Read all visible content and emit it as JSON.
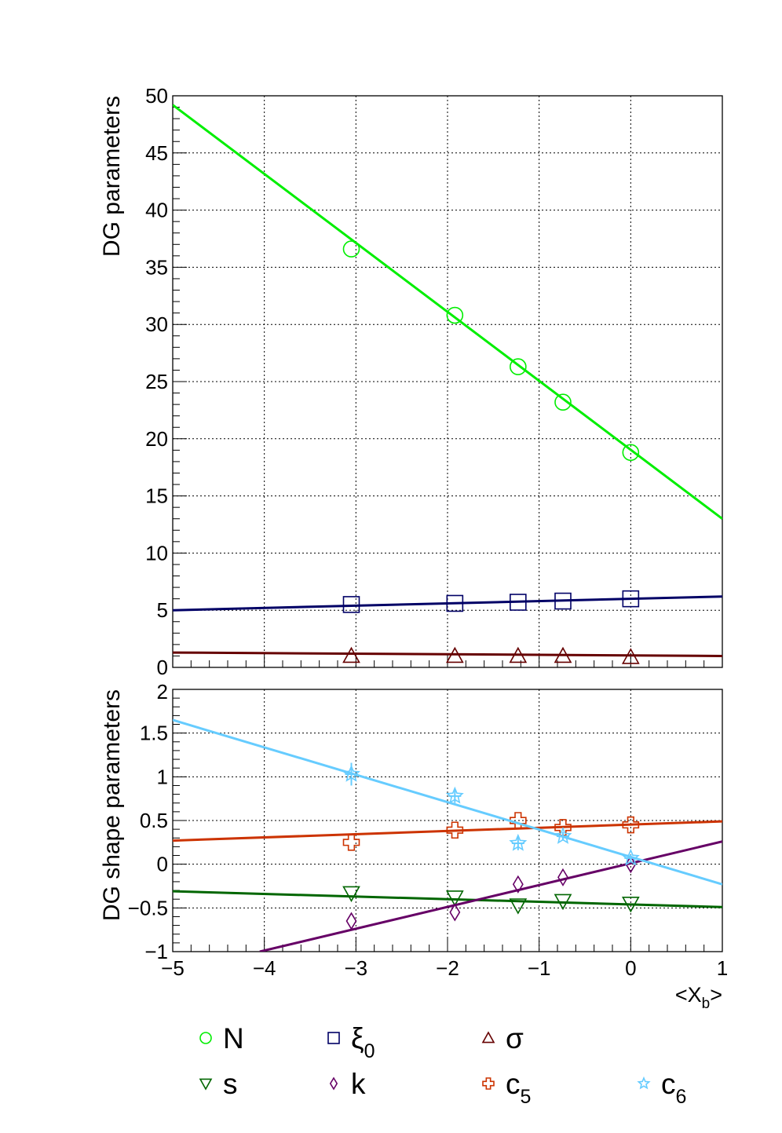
{
  "chart_data": [
    {
      "type": "scatter",
      "panel": "top",
      "ylabel": "DG parameters",
      "xlim": [
        -5,
        1
      ],
      "ylim": [
        0,
        50
      ],
      "grid": true,
      "x_ticks": [
        -5,
        -4,
        -3,
        -2,
        -1,
        0,
        1
      ],
      "y_ticks": [
        0,
        5,
        10,
        15,
        20,
        25,
        30,
        35,
        40,
        45,
        50
      ],
      "y_tick_labels": [
        "0",
        "5",
        "10",
        "15",
        "20",
        "25",
        "30",
        "35",
        "40",
        "45",
        "50"
      ],
      "series": [
        {
          "key": "N",
          "marker": "circle",
          "color": "#00ee00",
          "x": [
            -3.05,
            -1.92,
            -1.23,
            -0.74,
            0.0
          ],
          "y": [
            36.6,
            30.8,
            26.3,
            23.2,
            18.8
          ],
          "fit": {
            "x": [
              -5,
              1
            ],
            "y": [
              49.2,
              13.0
            ]
          }
        },
        {
          "key": "xi0",
          "marker": "square",
          "color": "#000066",
          "x": [
            -3.05,
            -1.92,
            -1.23,
            -0.74,
            0.0
          ],
          "y": [
            5.5,
            5.6,
            5.7,
            5.8,
            6.0
          ],
          "fit": {
            "x": [
              -5,
              1
            ],
            "y": [
              5.0,
              6.2
            ]
          }
        },
        {
          "key": "sigma",
          "marker": "triangle-up",
          "color": "#660000",
          "x": [
            -3.05,
            -1.92,
            -1.23,
            -0.74,
            0.0
          ],
          "y": [
            1.0,
            1.0,
            1.0,
            1.0,
            0.9
          ],
          "fit": {
            "x": [
              -5,
              1
            ],
            "y": [
              1.3,
              1.0
            ]
          }
        }
      ]
    },
    {
      "type": "scatter",
      "panel": "bottom",
      "ylabel": "DG shape parameters",
      "xlabel": "<X_b>",
      "xlim": [
        -5,
        1
      ],
      "ylim": [
        -1,
        2
      ],
      "grid": true,
      "x_ticks": [
        -5,
        -4,
        -3,
        -2,
        -1,
        0,
        1
      ],
      "x_tick_labels": [
        "−5",
        "−4",
        "−3",
        "−2",
        "−1",
        "0",
        "1"
      ],
      "y_ticks": [
        -1,
        -0.5,
        0,
        0.5,
        1,
        1.5,
        2
      ],
      "y_tick_labels": [
        "−1",
        "−0.5",
        "0",
        "0.5",
        "1",
        "1.5",
        "2"
      ],
      "series": [
        {
          "key": "s",
          "marker": "triangle-down",
          "color": "#006600",
          "x": [
            -3.05,
            -1.92,
            -1.23,
            -0.74,
            0.0
          ],
          "y": [
            -0.33,
            -0.38,
            -0.47,
            -0.42,
            -0.45
          ],
          "fit": {
            "x": [
              -5,
              1
            ],
            "y": [
              -0.31,
              -0.49
            ]
          }
        },
        {
          "key": "k",
          "marker": "diamond",
          "color": "#660066",
          "x": [
            -3.05,
            -1.92,
            -1.23,
            -0.74,
            0.0
          ],
          "y": [
            -0.65,
            -0.55,
            -0.23,
            -0.15,
            0.0
          ],
          "fit": {
            "x": [
              -4.05,
              1
            ],
            "y": [
              -1.0,
              0.26
            ]
          }
        },
        {
          "key": "c5",
          "marker": "cross",
          "color": "#cc3300",
          "x": [
            -3.05,
            -1.92,
            -1.23,
            -0.74,
            0.0
          ],
          "y": [
            0.25,
            0.39,
            0.5,
            0.42,
            0.45
          ],
          "fit": {
            "x": [
              -5,
              1
            ],
            "y": [
              0.27,
              0.49
            ]
          }
        },
        {
          "key": "c6",
          "marker": "star",
          "color": "#66ccff",
          "x": [
            -3.05,
            -1.92,
            -1.23,
            -0.74,
            0.0
          ],
          "y": [
            1.03,
            0.78,
            0.24,
            0.32,
            0.07
          ],
          "err": [
            0.13,
            0.08,
            0.08,
            0.05,
            0.04
          ],
          "fit": {
            "x": [
              -5,
              1
            ],
            "y": [
              1.65,
              -0.23
            ]
          }
        }
      ]
    }
  ],
  "legend": {
    "placement": "bottom",
    "entries": [
      {
        "key": "N",
        "text": "N",
        "sub": ""
      },
      {
        "key": "xi0",
        "text": "ξ",
        "sub": "0"
      },
      {
        "key": "sigma",
        "text": "σ",
        "sub": ""
      },
      {
        "key": "s",
        "text": "s",
        "sub": ""
      },
      {
        "key": "k",
        "text": "k",
        "sub": ""
      },
      {
        "key": "c5",
        "text": "c",
        "sub": "5"
      },
      {
        "key": "c6",
        "text": "c",
        "sub": "6"
      }
    ]
  }
}
